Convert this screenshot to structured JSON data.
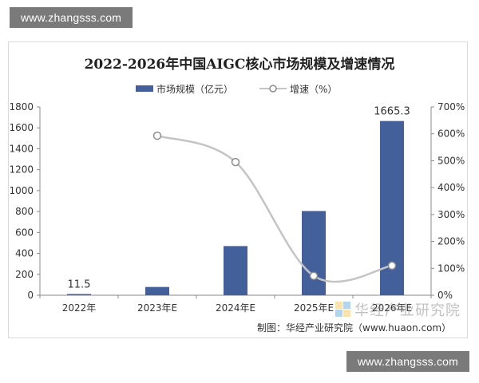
{
  "watermark": {
    "text": "www.zhangsss.com"
  },
  "source": {
    "text": "制图：华经产业研究院（www.huaon.com）"
  },
  "logo_watermark": {
    "text": "华经产业研究院"
  },
  "colors": {
    "bar": "#44609b",
    "line": "#c4c4c4",
    "marker": "#8c8c8c",
    "axis": "#888888"
  },
  "chart_data": {
    "type": "bar",
    "title": "2022-2026年中国AIGC核心市场规模及增速情况",
    "categories": [
      "2022年",
      "2023年E",
      "2024年E",
      "2025年E",
      "2026年E"
    ],
    "series": [
      {
        "name": "市场规模（亿元）",
        "type": "bar",
        "axis": "left",
        "values": [
          11.5,
          79,
          470,
          805,
          1665.3
        ]
      },
      {
        "name": "增速（%）",
        "type": "line",
        "axis": "right",
        "values": [
          null,
          593,
          495,
          72,
          110
        ]
      }
    ],
    "data_labels": [
      {
        "category": "2022年",
        "text": "11.5"
      },
      {
        "category": "2026年E",
        "text": "1665.3"
      }
    ],
    "left_axis": {
      "min": 0,
      "max": 1800,
      "ticks": [
        "0",
        "200",
        "400",
        "600",
        "800",
        "1000",
        "1200",
        "1400",
        "1600",
        "1800"
      ]
    },
    "right_axis": {
      "min": 0,
      "max": 700,
      "ticks": [
        "0%",
        "100%",
        "200%",
        "300%",
        "400%",
        "500%",
        "600%",
        "700%"
      ]
    },
    "grid": false,
    "legend_position": "top-center"
  }
}
